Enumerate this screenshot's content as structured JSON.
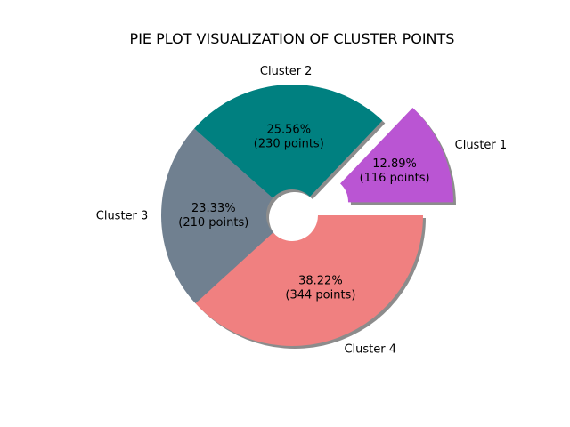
{
  "chart_data": {
    "type": "pie",
    "title": "PIE PLOT VISUALIZATION OF CLUSTER POINTS",
    "slices": [
      {
        "label": "Cluster 1",
        "percent": 12.89,
        "points": 116,
        "pct_text": "12.89%",
        "count_text": "(116 points)",
        "color": "#ba55d3",
        "exploded": true
      },
      {
        "label": "Cluster 2",
        "percent": 25.56,
        "points": 230,
        "pct_text": "25.56%",
        "count_text": "(230 points)",
        "color": "#008080",
        "exploded": false
      },
      {
        "label": "Cluster 3",
        "percent": 23.33,
        "points": 210,
        "pct_text": "23.33%",
        "count_text": "(210 points)",
        "color": "#708090",
        "exploded": false
      },
      {
        "label": "Cluster 4",
        "percent": 38.22,
        "points": 344,
        "pct_text": "38.22%",
        "count_text": "(344 points)",
        "color": "#f08080",
        "exploded": false
      }
    ],
    "start_angle_deg": 0,
    "counterclockwise": true,
    "donut": true,
    "shadow": true
  }
}
